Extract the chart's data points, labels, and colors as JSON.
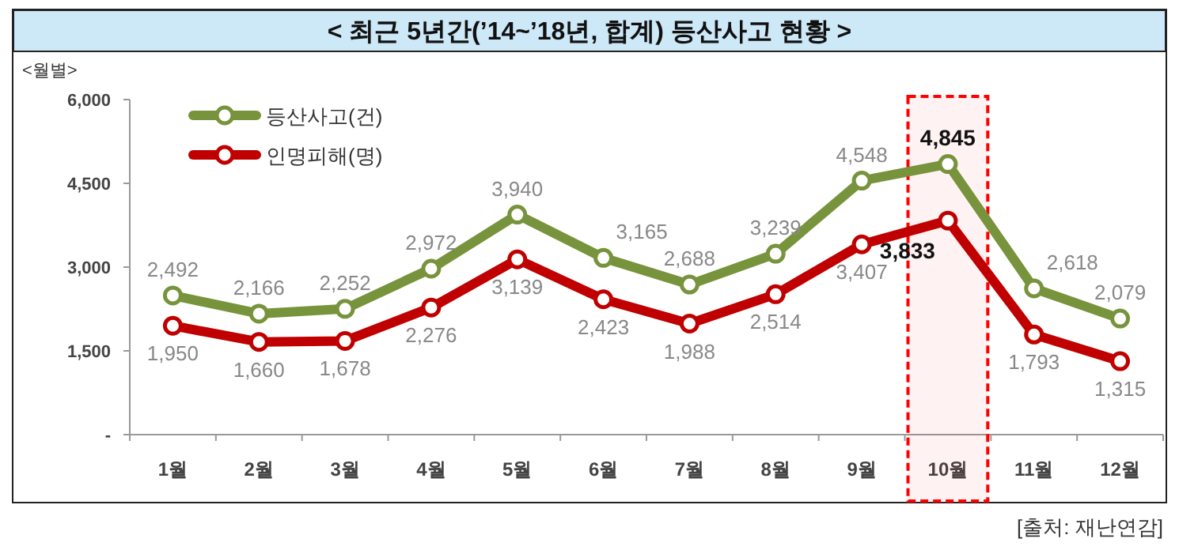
{
  "chart_data": {
    "type": "line",
    "title": "< 최근 5년간(’14~’18년, 합계) 등산사고 현황 >",
    "ylabel": "<월별>",
    "categories": [
      "1월",
      "2월",
      "3월",
      "4월",
      "5월",
      "6월",
      "7월",
      "8월",
      "9월",
      "10월",
      "11월",
      "12월"
    ],
    "series": [
      {
        "name": "등산사고(건)",
        "color": "#77933c",
        "values": [
          2492,
          2166,
          2252,
          2972,
          3940,
          3165,
          2688,
          3239,
          4548,
          4845,
          2618,
          2079
        ],
        "value_labels": [
          "2,492",
          "2,166",
          "2,252",
          "2,972",
          "3,940",
          "3,165",
          "2,688",
          "3,239",
          "4,548",
          "4,845",
          "2,618",
          "2,079"
        ]
      },
      {
        "name": "인명피해(명)",
        "color": "#c00000",
        "values": [
          1950,
          1660,
          1678,
          2276,
          3139,
          2423,
          1988,
          2514,
          3407,
          3833,
          1793,
          1315
        ],
        "value_labels": [
          "1,950",
          "1,660",
          "1,678",
          "2,276",
          "3,139",
          "2,423",
          "1,988",
          "2,514",
          "3,407",
          "3,833",
          "1,793",
          "1,315"
        ]
      }
    ],
    "ylim": [
      0,
      6000
    ],
    "yticks": [
      {
        "value": 0,
        "label": "-"
      },
      {
        "value": 1500,
        "label": "1,500"
      },
      {
        "value": 3000,
        "label": "3,000"
      },
      {
        "value": 4500,
        "label": "4,500"
      },
      {
        "value": 6000,
        "label": "6,000"
      }
    ],
    "bands": [
      {
        "axis": "x",
        "from": "10월",
        "to": "10월",
        "color": "#ff0000"
      }
    ],
    "annotations": [
      "[출처: 재난연감]"
    ],
    "legend": "top left",
    "marker": "circle",
    "line_style": "solid",
    "grid": false
  }
}
